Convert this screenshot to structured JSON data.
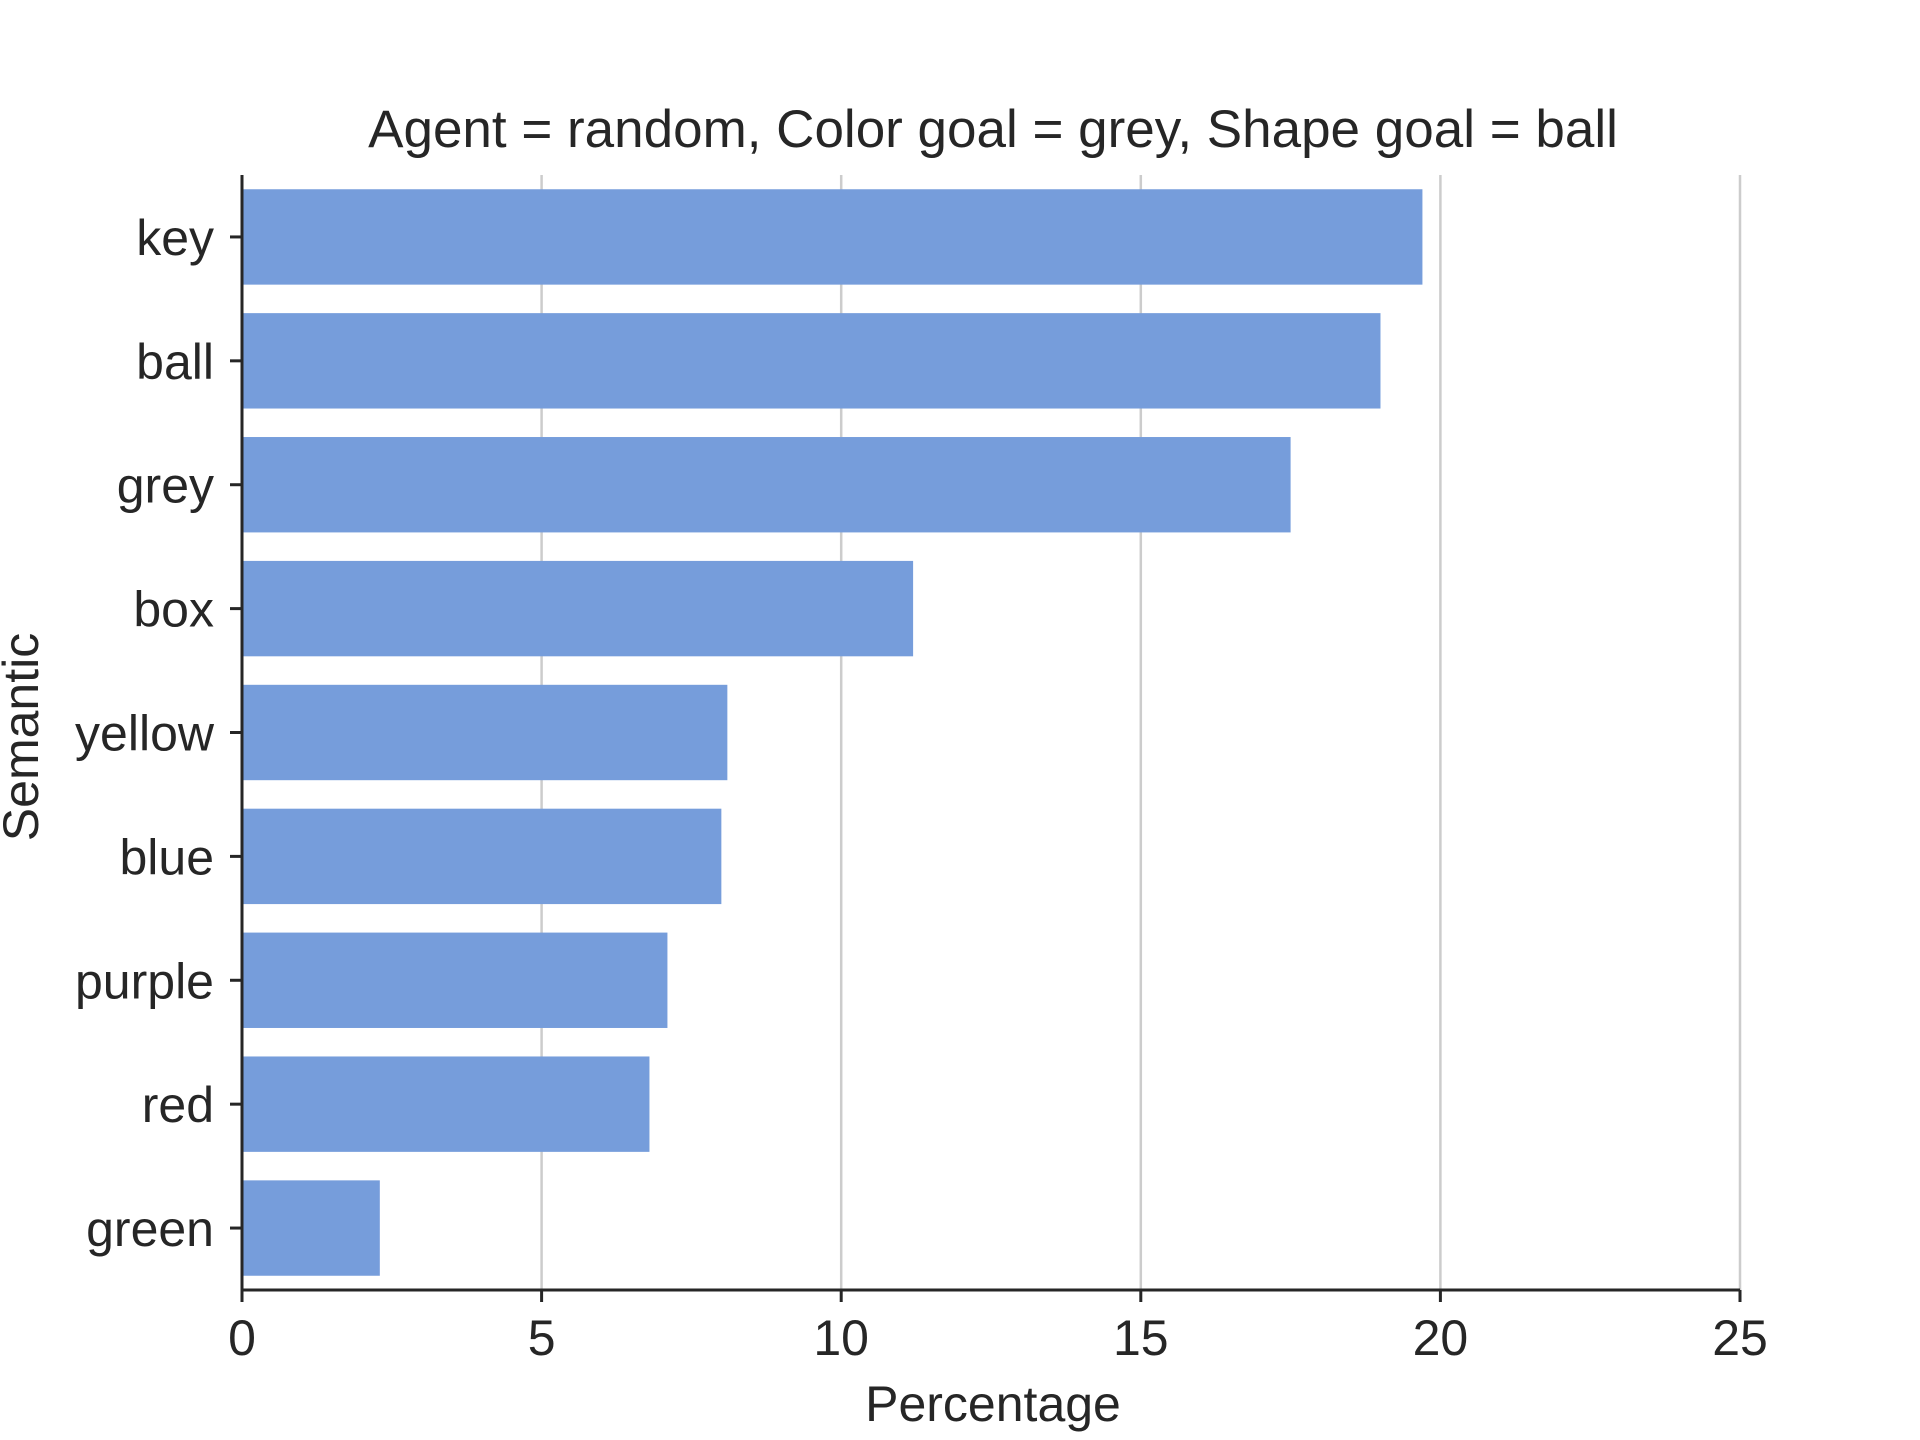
{
  "chart_data": {
    "type": "bar",
    "orientation": "horizontal",
    "title": "Agent = random, Color goal = grey, Shape goal = ball",
    "xlabel": "Percentage",
    "ylabel": "Semantic",
    "categories": [
      "key",
      "ball",
      "grey",
      "box",
      "yellow",
      "blue",
      "purple",
      "red",
      "green"
    ],
    "values": [
      19.7,
      19.0,
      17.5,
      11.2,
      8.1,
      8.0,
      7.1,
      6.8,
      2.3
    ],
    "xlim": [
      0,
      25
    ],
    "xticks": [
      0,
      5,
      10,
      15,
      20,
      25
    ],
    "grid": "vertical",
    "bar_color": "#769ddb",
    "axis_color": "#262626",
    "grid_color": "#cccccc"
  }
}
